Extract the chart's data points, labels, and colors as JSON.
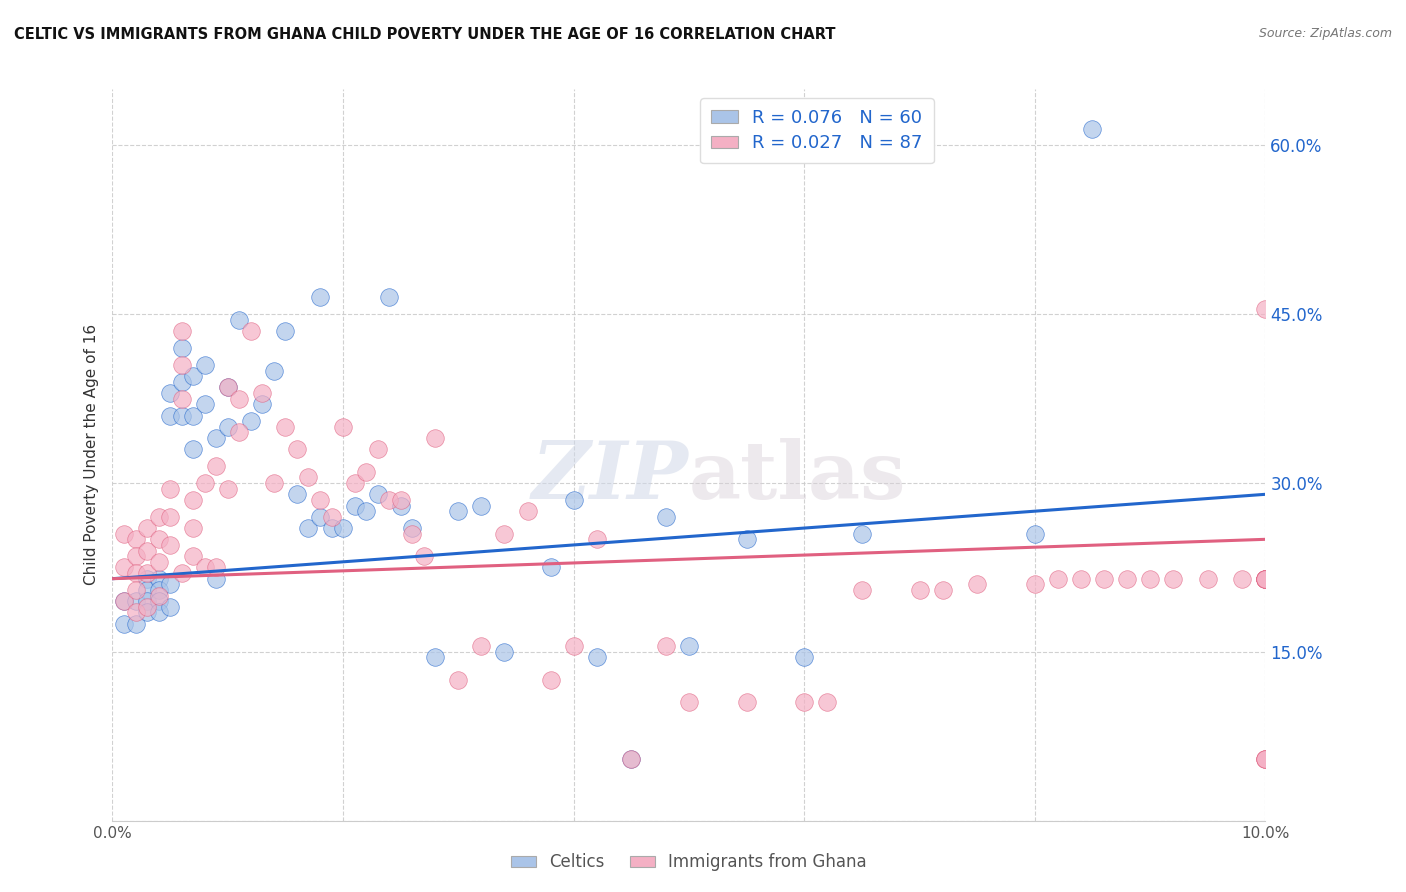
{
  "title": "CELTIC VS IMMIGRANTS FROM GHANA CHILD POVERTY UNDER THE AGE OF 16 CORRELATION CHART",
  "source": "Source: ZipAtlas.com",
  "ylabel": "Child Poverty Under the Age of 16",
  "xlim": [
    0.0,
    0.1
  ],
  "ylim": [
    0.0,
    0.65
  ],
  "celtics_color": "#aac4e8",
  "celtics_line_color": "#2266cc",
  "ghana_color": "#f4b0c4",
  "ghana_line_color": "#e06080",
  "celtics_R": 0.076,
  "celtics_N": 60,
  "ghana_R": 0.027,
  "ghana_N": 87,
  "background_color": "#ffffff",
  "grid_color": "#cccccc",
  "celtics_x": [
    0.001,
    0.001,
    0.002,
    0.002,
    0.003,
    0.003,
    0.003,
    0.003,
    0.004,
    0.004,
    0.004,
    0.004,
    0.005,
    0.005,
    0.005,
    0.005,
    0.006,
    0.006,
    0.006,
    0.007,
    0.007,
    0.007,
    0.008,
    0.008,
    0.009,
    0.009,
    0.01,
    0.01,
    0.011,
    0.012,
    0.013,
    0.014,
    0.015,
    0.016,
    0.017,
    0.018,
    0.018,
    0.019,
    0.02,
    0.021,
    0.022,
    0.023,
    0.024,
    0.025,
    0.026,
    0.028,
    0.03,
    0.032,
    0.034,
    0.038,
    0.04,
    0.042,
    0.045,
    0.048,
    0.05,
    0.055,
    0.06,
    0.065,
    0.08,
    0.085
  ],
  "celtics_y": [
    0.195,
    0.175,
    0.195,
    0.175,
    0.215,
    0.205,
    0.195,
    0.185,
    0.215,
    0.205,
    0.195,
    0.185,
    0.38,
    0.36,
    0.21,
    0.19,
    0.42,
    0.39,
    0.36,
    0.395,
    0.36,
    0.33,
    0.405,
    0.37,
    0.34,
    0.215,
    0.385,
    0.35,
    0.445,
    0.355,
    0.37,
    0.4,
    0.435,
    0.29,
    0.26,
    0.465,
    0.27,
    0.26,
    0.26,
    0.28,
    0.275,
    0.29,
    0.465,
    0.28,
    0.26,
    0.145,
    0.275,
    0.28,
    0.15,
    0.225,
    0.285,
    0.145,
    0.055,
    0.27,
    0.155,
    0.25,
    0.145,
    0.255,
    0.255,
    0.615
  ],
  "ghana_x": [
    0.001,
    0.001,
    0.001,
    0.002,
    0.002,
    0.002,
    0.002,
    0.002,
    0.003,
    0.003,
    0.003,
    0.003,
    0.004,
    0.004,
    0.004,
    0.004,
    0.005,
    0.005,
    0.005,
    0.006,
    0.006,
    0.006,
    0.006,
    0.007,
    0.007,
    0.007,
    0.008,
    0.008,
    0.009,
    0.009,
    0.01,
    0.01,
    0.011,
    0.011,
    0.012,
    0.013,
    0.014,
    0.015,
    0.016,
    0.017,
    0.018,
    0.019,
    0.02,
    0.021,
    0.022,
    0.023,
    0.024,
    0.025,
    0.026,
    0.027,
    0.028,
    0.03,
    0.032,
    0.034,
    0.036,
    0.038,
    0.04,
    0.042,
    0.045,
    0.048,
    0.05,
    0.055,
    0.06,
    0.062,
    0.065,
    0.07,
    0.072,
    0.075,
    0.08,
    0.082,
    0.084,
    0.086,
    0.088,
    0.09,
    0.092,
    0.095,
    0.098,
    0.1,
    0.1,
    0.1,
    0.1,
    0.1,
    0.1,
    0.1,
    0.1,
    0.1,
    0.1
  ],
  "ghana_y": [
    0.255,
    0.225,
    0.195,
    0.25,
    0.235,
    0.22,
    0.205,
    0.185,
    0.26,
    0.24,
    0.22,
    0.19,
    0.27,
    0.25,
    0.23,
    0.2,
    0.295,
    0.27,
    0.245,
    0.435,
    0.405,
    0.375,
    0.22,
    0.285,
    0.26,
    0.235,
    0.3,
    0.225,
    0.315,
    0.225,
    0.385,
    0.295,
    0.375,
    0.345,
    0.435,
    0.38,
    0.3,
    0.35,
    0.33,
    0.305,
    0.285,
    0.27,
    0.35,
    0.3,
    0.31,
    0.33,
    0.285,
    0.285,
    0.255,
    0.235,
    0.34,
    0.125,
    0.155,
    0.255,
    0.275,
    0.125,
    0.155,
    0.25,
    0.055,
    0.155,
    0.105,
    0.105,
    0.105,
    0.105,
    0.205,
    0.205,
    0.205,
    0.21,
    0.21,
    0.215,
    0.215,
    0.215,
    0.215,
    0.215,
    0.215,
    0.215,
    0.215,
    0.215,
    0.055,
    0.055,
    0.055,
    0.455,
    0.215,
    0.215,
    0.215,
    0.215,
    0.215
  ]
}
